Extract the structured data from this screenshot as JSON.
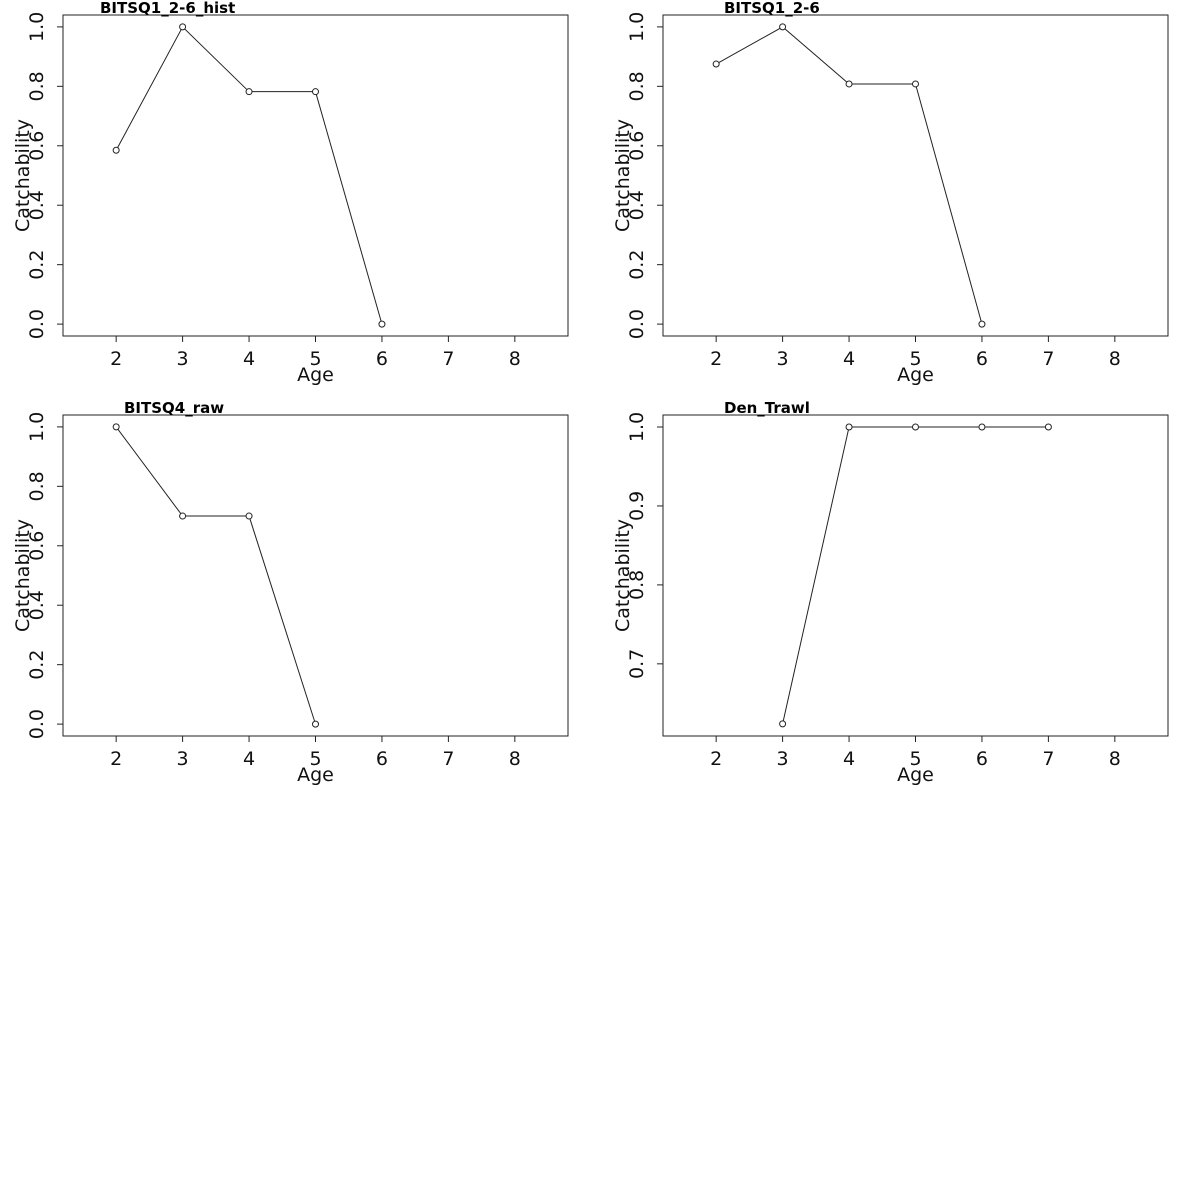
{
  "chart_data": [
    {
      "type": "line",
      "title": "BITSQ1_2-6_hist",
      "xlabel": "Age",
      "ylabel": "Catchability",
      "xlim": [
        1.2,
        8.8
      ],
      "ylim": [
        -0.04,
        1.04
      ],
      "xticks": [
        "2",
        "3",
        "4",
        "5",
        "6",
        "7",
        "8"
      ],
      "yticks": [
        "0.0",
        "0.2",
        "0.4",
        "0.6",
        "0.8",
        "1.0"
      ],
      "grid": false,
      "series": [
        {
          "x": [
            2,
            3,
            4,
            5,
            6
          ],
          "y": [
            0.585,
            1.0,
            0.782,
            0.782,
            0.0
          ]
        }
      ]
    },
    {
      "type": "line",
      "title": "BITSQ1_2-6",
      "xlabel": "Age",
      "ylabel": "Catchability",
      "xlim": [
        1.2,
        8.8
      ],
      "ylim": [
        -0.04,
        1.04
      ],
      "xticks": [
        "2",
        "3",
        "4",
        "5",
        "6",
        "7",
        "8"
      ],
      "yticks": [
        "0.0",
        "0.2",
        "0.4",
        "0.6",
        "0.8",
        "1.0"
      ],
      "grid": false,
      "series": [
        {
          "x": [
            2,
            3,
            4,
            5,
            6
          ],
          "y": [
            0.875,
            1.0,
            0.808,
            0.808,
            0.0
          ]
        }
      ]
    },
    {
      "type": "line",
      "title": "BITSQ4_raw",
      "xlabel": "Age",
      "ylabel": "Catchability",
      "xlim": [
        1.2,
        8.8
      ],
      "ylim": [
        -0.04,
        1.04
      ],
      "xticks": [
        "2",
        "3",
        "4",
        "5",
        "6",
        "7",
        "8"
      ],
      "yticks": [
        "0.0",
        "0.2",
        "0.4",
        "0.6",
        "0.8",
        "1.0"
      ],
      "grid": false,
      "series": [
        {
          "x": [
            2,
            3,
            4,
            5
          ],
          "y": [
            1.0,
            0.7,
            0.7,
            0.0
          ]
        }
      ]
    },
    {
      "type": "line",
      "title": "Den_Trawl",
      "xlabel": "Age",
      "ylabel": "Catchability",
      "xlim": [
        1.2,
        8.8
      ],
      "ylim": [
        0.6086,
        1.0152
      ],
      "xticks": [
        "2",
        "3",
        "4",
        "5",
        "6",
        "7",
        "8"
      ],
      "yticks": [
        "0.7",
        "0.8",
        "0.9",
        "1.0"
      ],
      "grid": false,
      "series": [
        {
          "x": [
            3,
            4,
            5,
            6,
            7
          ],
          "y": [
            0.624,
            1.0,
            1.0,
            1.0,
            1.0
          ]
        }
      ]
    }
  ]
}
